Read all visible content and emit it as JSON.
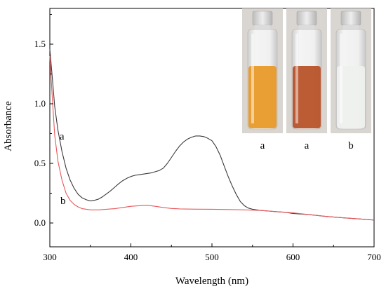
{
  "chart_data": {
    "type": "line",
    "xlabel": "Wavelength (nm)",
    "ylabel": "Absorbance",
    "xlim": [
      300,
      700
    ],
    "ylim": [
      -0.2,
      1.8
    ],
    "xticks": [
      300,
      400,
      500,
      600,
      700
    ],
    "xtick_labels": [
      "300",
      "400",
      "500",
      "600",
      "700"
    ],
    "yticks": [
      0.0,
      0.5,
      1.0,
      1.5
    ],
    "ytick_labels": [
      "0.0",
      "0.5",
      "1.0",
      "1.5"
    ],
    "grid": false,
    "series": [
      {
        "name": "a",
        "color": "#3a3a3a",
        "points": [
          [
            300,
            1.46
          ],
          [
            303,
            1.22
          ],
          [
            306,
            0.98
          ],
          [
            310,
            0.78
          ],
          [
            315,
            0.6
          ],
          [
            320,
            0.46
          ],
          [
            325,
            0.36
          ],
          [
            330,
            0.29
          ],
          [
            335,
            0.24
          ],
          [
            340,
            0.21
          ],
          [
            345,
            0.195
          ],
          [
            350,
            0.185
          ],
          [
            355,
            0.19
          ],
          [
            360,
            0.2
          ],
          [
            365,
            0.22
          ],
          [
            370,
            0.245
          ],
          [
            375,
            0.27
          ],
          [
            380,
            0.3
          ],
          [
            385,
            0.33
          ],
          [
            390,
            0.355
          ],
          [
            395,
            0.375
          ],
          [
            400,
            0.39
          ],
          [
            405,
            0.4
          ],
          [
            410,
            0.405
          ],
          [
            415,
            0.41
          ],
          [
            420,
            0.415
          ],
          [
            425,
            0.42
          ],
          [
            430,
            0.43
          ],
          [
            435,
            0.44
          ],
          [
            440,
            0.46
          ],
          [
            445,
            0.5
          ],
          [
            450,
            0.55
          ],
          [
            455,
            0.6
          ],
          [
            460,
            0.645
          ],
          [
            465,
            0.68
          ],
          [
            470,
            0.705
          ],
          [
            475,
            0.72
          ],
          [
            480,
            0.73
          ],
          [
            485,
            0.73
          ],
          [
            490,
            0.725
          ],
          [
            495,
            0.71
          ],
          [
            500,
            0.69
          ],
          [
            505,
            0.64
          ],
          [
            510,
            0.57
          ],
          [
            515,
            0.48
          ],
          [
            520,
            0.39
          ],
          [
            525,
            0.31
          ],
          [
            530,
            0.24
          ],
          [
            535,
            0.18
          ],
          [
            540,
            0.145
          ],
          [
            545,
            0.125
          ],
          [
            550,
            0.115
          ],
          [
            560,
            0.105
          ],
          [
            570,
            0.1
          ],
          [
            580,
            0.095
          ],
          [
            590,
            0.09
          ],
          [
            600,
            0.08
          ],
          [
            620,
            0.07
          ],
          [
            640,
            0.055
          ],
          [
            660,
            0.045
          ],
          [
            680,
            0.035
          ],
          [
            700,
            0.025
          ]
        ]
      },
      {
        "name": "b",
        "color": "#e8585b",
        "points": [
          [
            300,
            1.4
          ],
          [
            303,
            1.05
          ],
          [
            306,
            0.74
          ],
          [
            310,
            0.52
          ],
          [
            315,
            0.36
          ],
          [
            320,
            0.25
          ],
          [
            325,
            0.19
          ],
          [
            330,
            0.155
          ],
          [
            335,
            0.135
          ],
          [
            340,
            0.12
          ],
          [
            345,
            0.115
          ],
          [
            350,
            0.11
          ],
          [
            360,
            0.11
          ],
          [
            370,
            0.115
          ],
          [
            380,
            0.12
          ],
          [
            390,
            0.13
          ],
          [
            400,
            0.14
          ],
          [
            410,
            0.145
          ],
          [
            420,
            0.148
          ],
          [
            430,
            0.14
          ],
          [
            440,
            0.13
          ],
          [
            450,
            0.122
          ],
          [
            460,
            0.118
          ],
          [
            480,
            0.116
          ],
          [
            500,
            0.115
          ],
          [
            520,
            0.113
          ],
          [
            540,
            0.11
          ],
          [
            560,
            0.105
          ],
          [
            580,
            0.095
          ],
          [
            600,
            0.085
          ],
          [
            620,
            0.07
          ],
          [
            640,
            0.055
          ],
          [
            660,
            0.045
          ],
          [
            680,
            0.035
          ],
          [
            700,
            0.025
          ]
        ]
      }
    ],
    "annotations": [
      {
        "text": "a",
        "x": 312,
        "y": 0.7
      },
      {
        "text": "b",
        "x": 313,
        "y": 0.16
      }
    ]
  },
  "inset": {
    "description": "photo of vials",
    "vials": [
      {
        "label": "a",
        "liquid_color": "#e99a2a"
      },
      {
        "label": "a",
        "liquid_color": "#b8532a"
      },
      {
        "label": "b",
        "liquid_color": "#eef0ee"
      }
    ]
  }
}
